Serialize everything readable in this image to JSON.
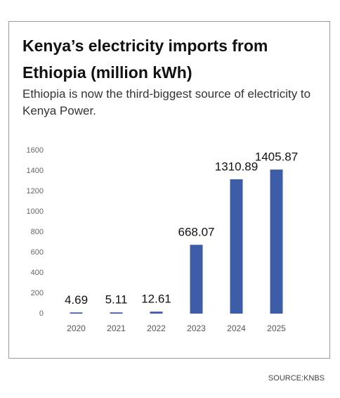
{
  "chart_data": {
    "type": "bar",
    "title": "Kenya’s electricity imports from Ethiopia (million kWh)",
    "subtitle": "Ethiopia is now the third-biggest source of electricity to Kenya Power.",
    "categories": [
      "2020",
      "2021",
      "2022",
      "2023",
      "2024",
      "2025"
    ],
    "values": [
      4.69,
      5.11,
      12.61,
      668.07,
      1310.89,
      1405.87
    ],
    "color": "#3d5da8",
    "ylim": [
      0,
      1600
    ],
    "yticks": [
      0,
      200,
      400,
      600,
      800,
      1000,
      1200,
      1400,
      1600
    ],
    "grid": false,
    "source": "SOURCE:KNBS"
  }
}
